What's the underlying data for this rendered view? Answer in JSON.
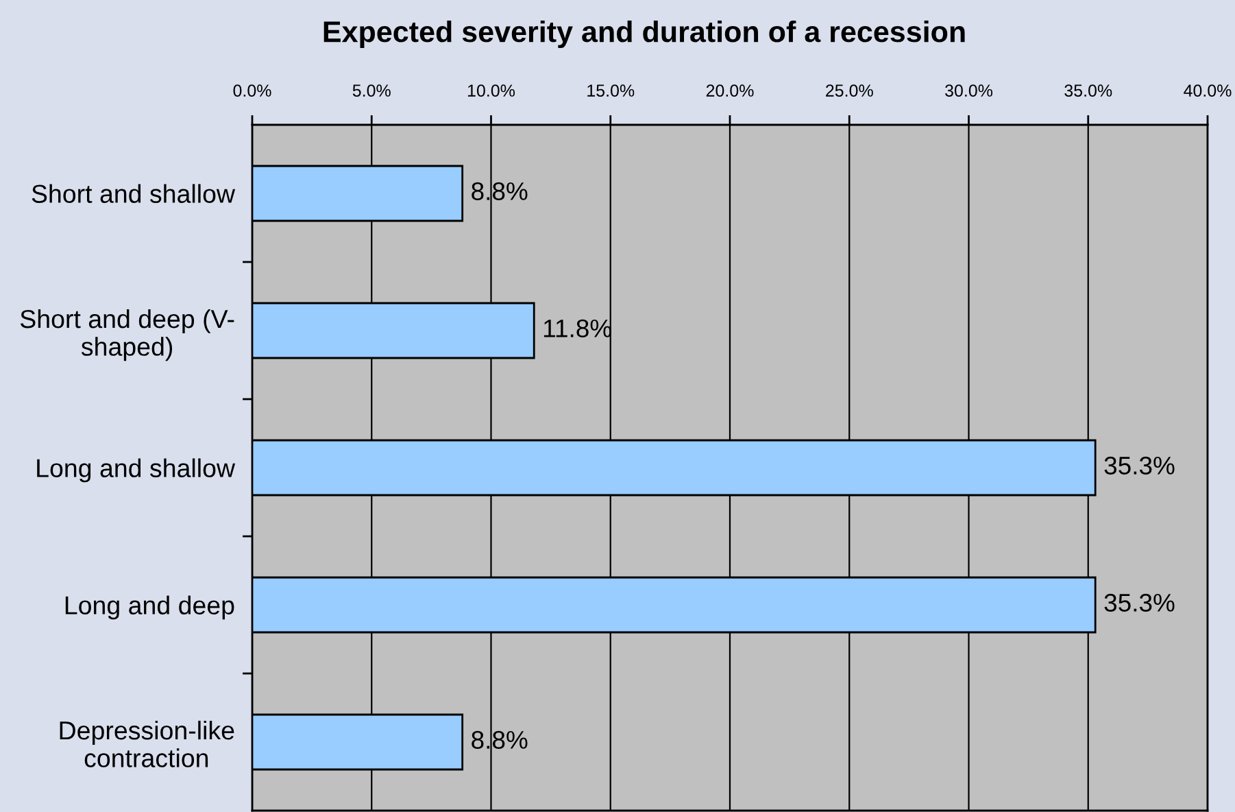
{
  "chart_data": {
    "type": "bar",
    "orientation": "horizontal",
    "title": "Expected severity and duration of a recession",
    "categories": [
      "Short and shallow",
      "Short and deep (V-\nshaped)",
      "Long and shallow",
      "Long and deep",
      "Depression-like\ncontraction"
    ],
    "values": [
      8.8,
      11.8,
      35.3,
      35.3,
      8.8
    ],
    "color": "#99ccff",
    "value_labels": [
      "8.8%",
      "11.8%",
      "35.3%",
      "35.3%",
      "8.8%"
    ],
    "xlim": [
      0,
      40
    ],
    "xticks": [
      {
        "value": 0,
        "label": "0.0%"
      },
      {
        "value": 5,
        "label": "5.0%"
      },
      {
        "value": 10,
        "label": "10.0%"
      },
      {
        "value": 15,
        "label": "15.0%"
      },
      {
        "value": 20,
        "label": "20.0%"
      },
      {
        "value": 25,
        "label": "25.0%"
      },
      {
        "value": 30,
        "label": "30.0%"
      },
      {
        "value": 35,
        "label": "35.0%"
      },
      {
        "value": 40,
        "label": "40.0%"
      }
    ],
    "grid": "x"
  }
}
